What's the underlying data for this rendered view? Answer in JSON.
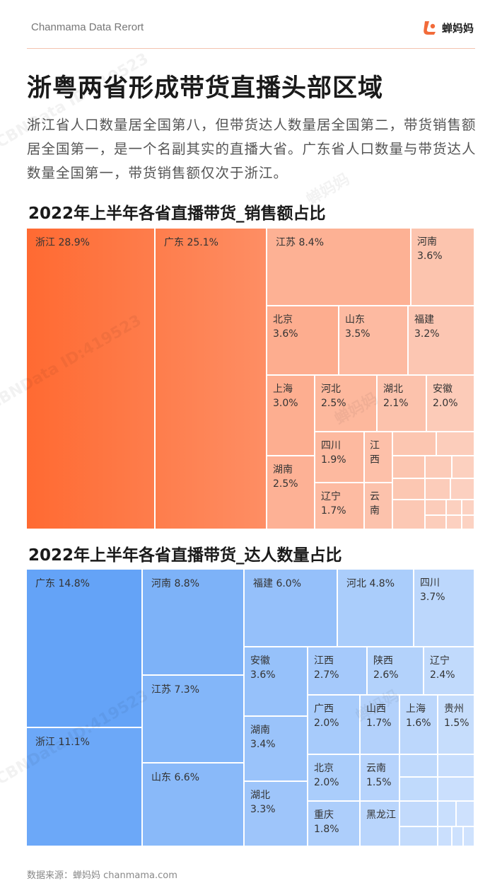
{
  "header": {
    "source_tag": "Chanmama Data Rerort",
    "brand": "蝉妈妈",
    "accent": "#f26b3a"
  },
  "page": {
    "title": "浙粤两省形成带货直播头部区域",
    "intro": "浙江省人口数量居全国第八，但带货达人数量居全国第二，带货销售额居全国第一，是一个名副其实的直播大省。广东省人口数量与带货达人数量全国第一，带货销售额仅次于浙江。"
  },
  "watermarks": [
    "CBNData ID:419523",
    "蝉妈妈",
    "CBNData ID:419523",
    "蝉妈妈",
    "CBNData ID:419523",
    "蝉妈妈"
  ],
  "chart_data": [
    {
      "type": "treemap",
      "title": "2022年上半年各省直播带货_销售额占比",
      "colors": {
        "from": "#ff6a32",
        "to": "#fcd2c2"
      },
      "series": [
        {
          "label": "浙江",
          "value_text": "28.9%",
          "value": 28.9
        },
        {
          "label": "广东",
          "value_text": "25.1%",
          "value": 25.1
        },
        {
          "label": "江苏",
          "value_text": "8.4%",
          "value": 8.4
        },
        {
          "label": "河南",
          "value_text": "3.6%",
          "value": 3.6
        },
        {
          "label": "北京",
          "value_text": "3.6%",
          "value": 3.6
        },
        {
          "label": "山东",
          "value_text": "3.5%",
          "value": 3.5
        },
        {
          "label": "福建",
          "value_text": "3.2%",
          "value": 3.2
        },
        {
          "label": "上海",
          "value_text": "3.0%",
          "value": 3.0
        },
        {
          "label": "河北",
          "value_text": "2.5%",
          "value": 2.5
        },
        {
          "label": "湖北",
          "value_text": "2.1%",
          "value": 2.1
        },
        {
          "label": "安徽",
          "value_text": "2.0%",
          "value": 2.0
        },
        {
          "label": "湖南",
          "value_text": "2.5%",
          "value": 2.5
        },
        {
          "label": "四川",
          "value_text": "1.9%",
          "value": 1.9
        },
        {
          "label": "江西",
          "value_text": "",
          "value": null
        },
        {
          "label": "辽宁",
          "value_text": "1.7%",
          "value": 1.7
        },
        {
          "label": "云南",
          "value_text": "",
          "value": null
        }
      ]
    },
    {
      "type": "treemap",
      "title": "2022年上半年各省直播带货_达人数量占比",
      "colors": {
        "from": "#3f8ef5",
        "to": "#cfe2fd"
      },
      "series": [
        {
          "label": "广东",
          "value_text": "14.8%",
          "value": 14.8
        },
        {
          "label": "浙江",
          "value_text": "11.1%",
          "value": 11.1
        },
        {
          "label": "河南",
          "value_text": "8.8%",
          "value": 8.8
        },
        {
          "label": "江苏",
          "value_text": "7.3%",
          "value": 7.3
        },
        {
          "label": "山东",
          "value_text": "6.6%",
          "value": 6.6
        },
        {
          "label": "福建",
          "value_text": "6.0%",
          "value": 6.0
        },
        {
          "label": "河北",
          "value_text": "4.8%",
          "value": 4.8
        },
        {
          "label": "四川",
          "value_text": "3.7%",
          "value": 3.7
        },
        {
          "label": "安徽",
          "value_text": "3.6%",
          "value": 3.6
        },
        {
          "label": "江西",
          "value_text": "2.7%",
          "value": 2.7
        },
        {
          "label": "陕西",
          "value_text": "2.6%",
          "value": 2.6
        },
        {
          "label": "辽宁",
          "value_text": "2.4%",
          "value": 2.4
        },
        {
          "label": "湖南",
          "value_text": "3.4%",
          "value": 3.4
        },
        {
          "label": "湖北",
          "value_text": "3.3%",
          "value": 3.3
        },
        {
          "label": "广西",
          "value_text": "2.0%",
          "value": 2.0
        },
        {
          "label": "北京",
          "value_text": "2.0%",
          "value": 2.0
        },
        {
          "label": "重庆",
          "value_text": "1.8%",
          "value": 1.8
        },
        {
          "label": "山西",
          "value_text": "1.7%",
          "value": 1.7
        },
        {
          "label": "上海",
          "value_text": "1.6%",
          "value": 1.6
        },
        {
          "label": "贵州",
          "value_text": "1.5%",
          "value": 1.5
        },
        {
          "label": "云南",
          "value_text": "1.5%",
          "value": 1.5
        },
        {
          "label": "黑龙江",
          "value_text": "",
          "value": null
        }
      ]
    }
  ],
  "footer": {
    "source": "数据来源：蝉妈妈 chanmama.com"
  }
}
